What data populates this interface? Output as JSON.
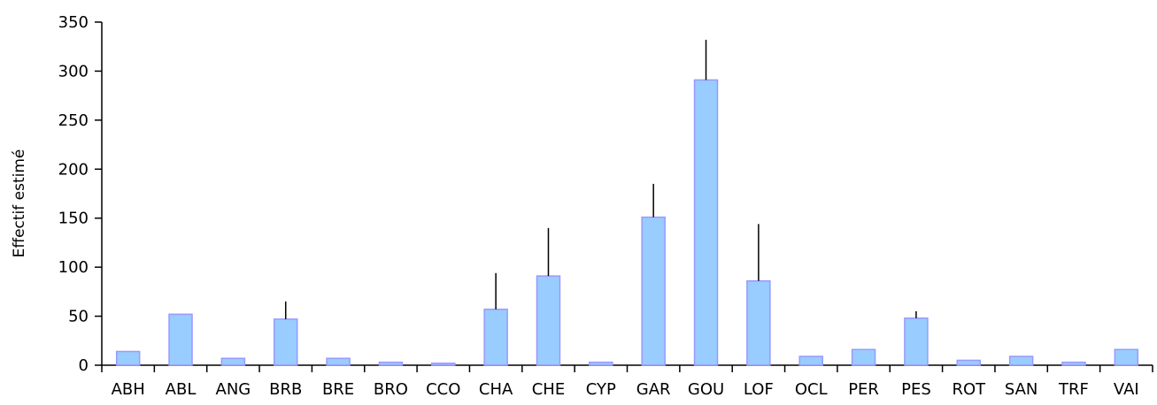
{
  "chart_data": {
    "type": "bar",
    "title": "",
    "xlabel": "",
    "ylabel": "Effectif estimé",
    "ylim": [
      0,
      350
    ],
    "yticks": [
      0,
      50,
      100,
      150,
      200,
      250,
      300,
      350
    ],
    "grid": false,
    "legend": "none",
    "colors": {
      "bar_fill": "#99ccff",
      "bar_stroke": "#9999ff",
      "axis": "#000000",
      "error_bar": "#000000"
    },
    "categories": [
      "ABH",
      "ABL",
      "ANG",
      "BRB",
      "BRE",
      "BRO",
      "CCO",
      "CHA",
      "CHE",
      "CYP",
      "GAR",
      "GOU",
      "LOF",
      "OCL",
      "PER",
      "PES",
      "ROT",
      "SAN",
      "TRF",
      "VAI"
    ],
    "series": [
      {
        "values": [
          14,
          52,
          7,
          47,
          7,
          3,
          2,
          57,
          91,
          3,
          151,
          291,
          86,
          9,
          16,
          48,
          5,
          9,
          3,
          16
        ],
        "error_upper": [
          0,
          0,
          0,
          18,
          0,
          0,
          0,
          37,
          49,
          0,
          34,
          41,
          58,
          0,
          0,
          7,
          0,
          0,
          0,
          0
        ]
      }
    ]
  }
}
